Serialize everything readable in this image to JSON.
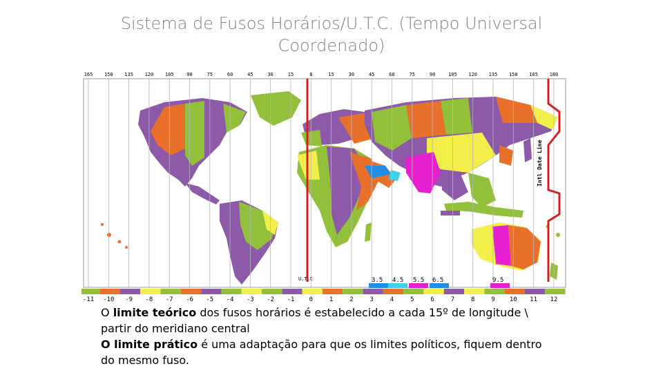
{
  "slide": {
    "title_line1": "Sistema de Fusos Horários/U.T.C. (Tempo Universal",
    "title_line2": "Coordenado)"
  },
  "map": {
    "top_longitudes": [
      "165",
      "150",
      "135",
      "120",
      "105",
      "90",
      "75",
      "60",
      "45",
      "30",
      "15",
      "0",
      "15",
      "30",
      "45",
      "60",
      "75",
      "90",
      "105",
      "120",
      "135",
      "150",
      "165",
      "180"
    ],
    "bottom_offsets": [
      "-11",
      "-10",
      "-9",
      "-8",
      "-7",
      "-6",
      "-5",
      "-4",
      "-3",
      "-2",
      "-1",
      "0",
      "1",
      "2",
      "3",
      "4",
      "5",
      "6",
      "7",
      "8",
      "9",
      "10",
      "11",
      "12"
    ],
    "utc_label": "U.T.C",
    "idl_label": "Intl Date Line",
    "half_hour_labels": [
      "3.5",
      "4.5",
      "5.5",
      "6.5",
      "9.5"
    ],
    "colors": {
      "orange": "#e8702a",
      "purple": "#8c5aa8",
      "green": "#93c03a",
      "yellow": "#f2ef4b",
      "magenta": "#e81fd0",
      "blue": "#1f8ee8",
      "cyan": "#3fd0e8",
      "red_line": "#d21f1f"
    }
  },
  "caption": {
    "p1_pre": "O ",
    "p1_bold": "limite teórico",
    "p1_post": " dos fusos horários é estabelecido a cada 15º de longitude \\",
    "p1_line2": "partir do meridiano central",
    "p2_bold": "O limite prático",
    "p2_post": " é uma adaptação  para que os limites políticos, fiquem dentro",
    "p2_line2": "do mesmo fuso."
  }
}
